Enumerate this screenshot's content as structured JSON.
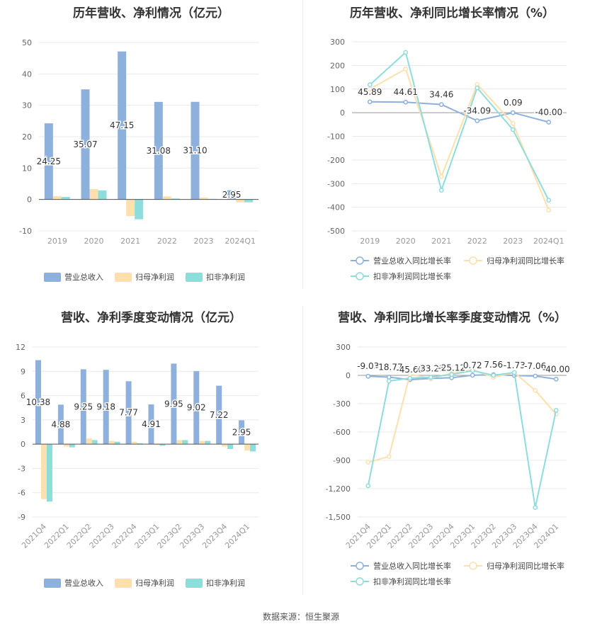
{
  "source_note": "数据来源：恒生聚源",
  "colors": {
    "revenue": "#8eb0dd",
    "net_profit": "#fde0ae",
    "deducted": "#8fdcdd",
    "line_revenue": "#8eb0dd",
    "line_net": "#fde0ae",
    "line_deducted": "#8fdcdd"
  },
  "chart_data": [
    {
      "id": "annual-bar",
      "type": "bar",
      "title": "历年营收、净利情况（亿元）",
      "categories": [
        "2019",
        "2020",
        "2021",
        "2022",
        "2023",
        "2024Q1"
      ],
      "ylim": [
        -10,
        50
      ],
      "yticks": [
        -10,
        0,
        10,
        20,
        30,
        40,
        50
      ],
      "legend_position": "bottom",
      "series": [
        {
          "name": "营业总收入",
          "values": [
            24.25,
            35.07,
            47.15,
            31.08,
            31.1,
            2.95
          ]
        },
        {
          "name": "归母净利润",
          "values": [
            1.1,
            3.3,
            -5.3,
            1.0,
            0.6,
            -0.9
          ]
        },
        {
          "name": "扣非净利润",
          "values": [
            0.8,
            2.9,
            -6.3,
            0.3,
            0.2,
            -0.9
          ]
        }
      ],
      "data_labels": [
        "24.25",
        "35.07",
        "47.15",
        "31.08",
        "31.10",
        "2.95"
      ]
    },
    {
      "id": "annual-line",
      "type": "line",
      "title": "历年营收、净利同比增长率情况（%）",
      "categories": [
        "2019",
        "2020",
        "2021",
        "2022",
        "2023",
        "2024Q1"
      ],
      "ylim": [
        -500,
        300
      ],
      "yticks": [
        -500,
        -400,
        -300,
        -200,
        -100,
        0,
        100,
        200,
        300
      ],
      "legend_position": "bottom",
      "series": [
        {
          "name": "营业总收入同比增长率",
          "values": [
            45.89,
            44.61,
            34.46,
            -34.09,
            0.09,
            -40.0
          ]
        },
        {
          "name": "归母净利润同比增长率",
          "values": [
            100,
            185,
            -270,
            120,
            -45,
            -412
          ]
        },
        {
          "name": "扣非净利润同比增长率",
          "values": [
            118,
            255,
            -328,
            105,
            -72,
            -370
          ]
        }
      ],
      "data_labels": [
        "45.89",
        "44.61",
        "34.46",
        "-34.09",
        "0.09",
        "-40.00"
      ]
    },
    {
      "id": "quarter-bar",
      "type": "bar",
      "title": "营收、净利季度变动情况（亿元）",
      "categories": [
        "2021Q4",
        "2022Q1",
        "2022Q2",
        "2022Q3",
        "2022Q4",
        "2023Q1",
        "2023Q2",
        "2023Q3",
        "2023Q4",
        "2024Q1"
      ],
      "ylim": [
        -9,
        12
      ],
      "yticks": [
        -9,
        -6,
        -3,
        0,
        3,
        6,
        9,
        12
      ],
      "legend_position": "bottom",
      "series": [
        {
          "name": "营业总收入",
          "values": [
            10.38,
            4.88,
            9.25,
            9.18,
            7.77,
            4.91,
            9.95,
            9.02,
            7.22,
            2.95
          ]
        },
        {
          "name": "归母净利润",
          "values": [
            -6.8,
            -0.3,
            0.7,
            0.4,
            0.3,
            -0.1,
            0.5,
            0.4,
            -0.3,
            -0.8
          ]
        },
        {
          "name": "扣非净利润",
          "values": [
            -7.1,
            -0.4,
            0.5,
            0.3,
            0.1,
            -0.2,
            0.5,
            0.4,
            -0.6,
            -0.9
          ]
        }
      ],
      "data_labels": [
        "10.38",
        "4.88",
        "9.25",
        "9.18",
        "7.77",
        "4.91",
        "9.95",
        "9.02",
        "7.22",
        "2.95"
      ]
    },
    {
      "id": "quarter-line",
      "type": "line",
      "title": "营收、净利同比增长率季度变动情况（%）",
      "categories": [
        "2021Q4",
        "2022Q1",
        "2022Q2",
        "2022Q3",
        "2022Q4",
        "2023Q1",
        "2023Q2",
        "2023Q3",
        "2023Q4",
        "2024Q1"
      ],
      "ylim": [
        -1500,
        300
      ],
      "yticks": [
        -1500,
        -1200,
        -900,
        -600,
        -300,
        0,
        300
      ],
      "legend_position": "bottom",
      "series": [
        {
          "name": "营业总收入同比增长率",
          "values": [
            -9.03,
            -18.77,
            -45.68,
            -33.21,
            -25.12,
            0.72,
            7.56,
            -1.73,
            -7.06,
            -40.0
          ]
        },
        {
          "name": "归母净利润同比增长率",
          "values": [
            -920,
            -860,
            10,
            -30,
            20,
            60,
            -20,
            30,
            -160,
            -410
          ]
        },
        {
          "name": "扣非净利润同比增长率",
          "values": [
            -1170,
            -60,
            -30,
            -20,
            10,
            50,
            0,
            30,
            -1400,
            -370
          ]
        }
      ],
      "data_labels": [
        "-9.03",
        "-18.77",
        "-45.68",
        "-33.21",
        "-25.12",
        "0.72",
        "7.56",
        "-1.73",
        "-7.06",
        "-40.00"
      ]
    }
  ]
}
